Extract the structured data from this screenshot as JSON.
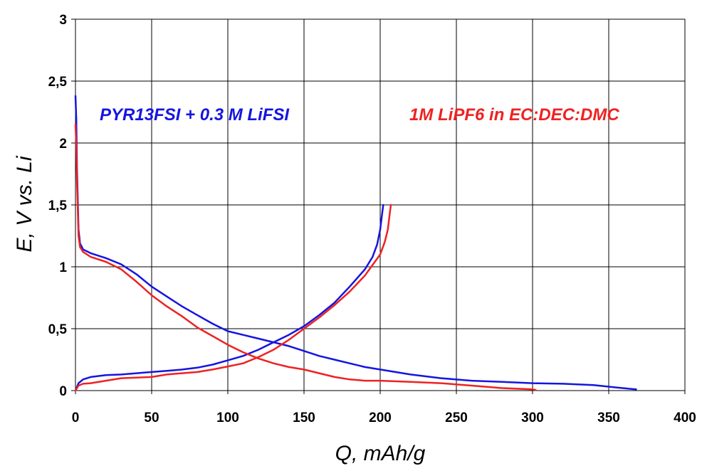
{
  "chart_data": {
    "type": "line",
    "xlabel": "Q, mAh/g",
    "ylabel": "E, V vs. Li",
    "xlim": [
      0,
      400
    ],
    "ylim": [
      0,
      3
    ],
    "x_ticks": [
      "0",
      "50",
      "100",
      "150",
      "200",
      "250",
      "300",
      "350",
      "400"
    ],
    "y_ticks": [
      "0",
      "0,5",
      "1",
      "1,5",
      "2",
      "2,5",
      "3"
    ],
    "grid": true,
    "legend": "none",
    "annotations": [
      {
        "text": "PYR13FSI + 0.3 M LiFSI",
        "color": "#1515e0"
      },
      {
        "text": "1M LiPF6 in EC:DEC:DMC",
        "color": "#ee2222"
      }
    ],
    "series": [
      {
        "color": "#1515e0",
        "segment": "discharge",
        "points": [
          [
            0,
            2.38
          ],
          [
            0.5,
            2.2
          ],
          [
            1,
            1.8
          ],
          [
            2,
            1.3
          ],
          [
            3,
            1.19
          ],
          [
            5,
            1.14
          ],
          [
            10,
            1.11
          ],
          [
            20,
            1.07
          ],
          [
            30,
            1.02
          ],
          [
            40,
            0.94
          ],
          [
            50,
            0.84
          ],
          [
            60,
            0.76
          ],
          [
            70,
            0.68
          ],
          [
            80,
            0.61
          ],
          [
            90,
            0.54
          ],
          [
            100,
            0.48
          ],
          [
            110,
            0.45
          ],
          [
            120,
            0.42
          ],
          [
            130,
            0.39
          ],
          [
            140,
            0.36
          ],
          [
            150,
            0.32
          ],
          [
            160,
            0.28
          ],
          [
            170,
            0.25
          ],
          [
            180,
            0.22
          ],
          [
            190,
            0.19
          ],
          [
            200,
            0.17
          ],
          [
            220,
            0.13
          ],
          [
            240,
            0.1
          ],
          [
            260,
            0.08
          ],
          [
            280,
            0.07
          ],
          [
            300,
            0.06
          ],
          [
            320,
            0.055
          ],
          [
            340,
            0.045
          ],
          [
            355,
            0.025
          ],
          [
            368,
            0.01
          ]
        ]
      },
      {
        "color": "#1515e0",
        "segment": "charge",
        "points": [
          [
            0,
            0.0
          ],
          [
            2,
            0.06
          ],
          [
            5,
            0.09
          ],
          [
            10,
            0.11
          ],
          [
            20,
            0.125
          ],
          [
            30,
            0.13
          ],
          [
            40,
            0.14
          ],
          [
            50,
            0.15
          ],
          [
            60,
            0.16
          ],
          [
            70,
            0.17
          ],
          [
            80,
            0.185
          ],
          [
            90,
            0.21
          ],
          [
            100,
            0.245
          ],
          [
            110,
            0.28
          ],
          [
            120,
            0.33
          ],
          [
            130,
            0.39
          ],
          [
            140,
            0.45
          ],
          [
            150,
            0.52
          ],
          [
            160,
            0.61
          ],
          [
            170,
            0.71
          ],
          [
            180,
            0.84
          ],
          [
            190,
            0.98
          ],
          [
            195,
            1.08
          ],
          [
            198,
            1.18
          ],
          [
            200,
            1.3
          ],
          [
            201,
            1.4
          ],
          [
            202,
            1.5
          ]
        ]
      },
      {
        "color": "#ee2222",
        "segment": "discharge",
        "points": [
          [
            0,
            2.15
          ],
          [
            0.5,
            2.0
          ],
          [
            1,
            1.7
          ],
          [
            2,
            1.25
          ],
          [
            3,
            1.16
          ],
          [
            5,
            1.12
          ],
          [
            10,
            1.08
          ],
          [
            20,
            1.04
          ],
          [
            30,
            0.98
          ],
          [
            40,
            0.88
          ],
          [
            50,
            0.77
          ],
          [
            60,
            0.68
          ],
          [
            70,
            0.6
          ],
          [
            80,
            0.51
          ],
          [
            90,
            0.44
          ],
          [
            100,
            0.37
          ],
          [
            110,
            0.31
          ],
          [
            120,
            0.26
          ],
          [
            130,
            0.22
          ],
          [
            140,
            0.19
          ],
          [
            150,
            0.17
          ],
          [
            160,
            0.14
          ],
          [
            170,
            0.11
          ],
          [
            180,
            0.09
          ],
          [
            190,
            0.08
          ],
          [
            200,
            0.08
          ],
          [
            220,
            0.07
          ],
          [
            240,
            0.06
          ],
          [
            260,
            0.04
          ],
          [
            280,
            0.02
          ],
          [
            300,
            0.01
          ],
          [
            302,
            0.005
          ]
        ]
      },
      {
        "color": "#ee2222",
        "segment": "charge",
        "points": [
          [
            0,
            0.0
          ],
          [
            2,
            0.04
          ],
          [
            5,
            0.055
          ],
          [
            10,
            0.06
          ],
          [
            20,
            0.08
          ],
          [
            30,
            0.1
          ],
          [
            40,
            0.105
          ],
          [
            50,
            0.11
          ],
          [
            60,
            0.13
          ],
          [
            70,
            0.14
          ],
          [
            80,
            0.15
          ],
          [
            90,
            0.17
          ],
          [
            100,
            0.195
          ],
          [
            110,
            0.22
          ],
          [
            120,
            0.27
          ],
          [
            130,
            0.33
          ],
          [
            140,
            0.41
          ],
          [
            150,
            0.5
          ],
          [
            160,
            0.59
          ],
          [
            170,
            0.69
          ],
          [
            180,
            0.8
          ],
          [
            190,
            0.93
          ],
          [
            200,
            1.1
          ],
          [
            203,
            1.2
          ],
          [
            205,
            1.3
          ],
          [
            206,
            1.4
          ],
          [
            207,
            1.5
          ]
        ]
      }
    ]
  }
}
